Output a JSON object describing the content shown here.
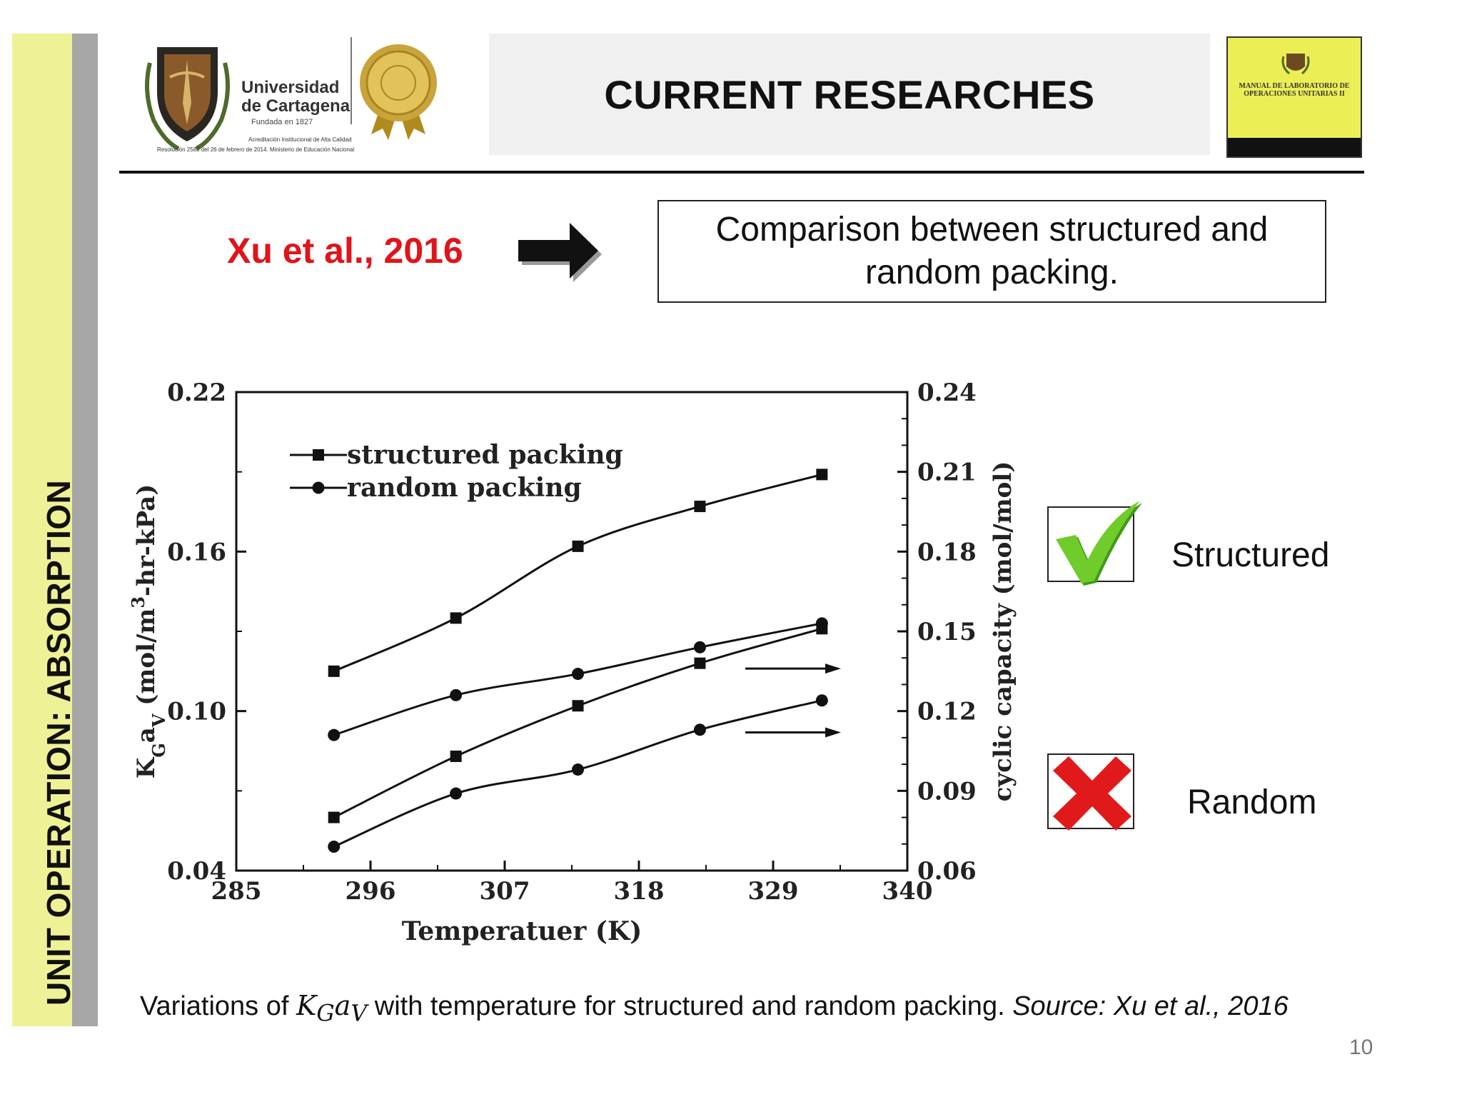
{
  "sidebar": {
    "label": "UNIT OPERATION: ABSORPTION"
  },
  "header": {
    "title": "CURRENT RESEARCHES",
    "logo": {
      "name_line1": "Universidad",
      "name_line2": "de Cartagena",
      "founded": "Fundada en 1827",
      "accreditation_line1": "Acreditación Institucional de Alta Calidad",
      "accreditation_line2": "Resolución 2583 del 26 de febrero de 2014. Ministerio de Educación Nacional"
    },
    "book_title": "MANUAL DE LABORATORIO DE OPERACIONES UNITARIAS II"
  },
  "reference": {
    "citation": "Xu et al., 2016",
    "arrow_icon": "right-arrow-icon"
  },
  "comparison": {
    "line1": "Comparison between structured and",
    "line2": "random packing."
  },
  "chart_data": {
    "type": "line",
    "xlabel": "Temperatuer (K)",
    "ylabel_left": "KGaV (mol/m3-hr-kPa)",
    "ylabel_left_parts": {
      "k": "K",
      "g": "G",
      "a": "a",
      "v": "V",
      "rest": " (mol/m",
      "sup": "3",
      "tail": "-hr-kPa)"
    },
    "ylabel_right": "cyclic capacity (mol/mol)",
    "xlim": [
      285,
      340
    ],
    "ylim_left": [
      0.04,
      0.22
    ],
    "ylim_right": [
      0.06,
      0.24
    ],
    "x_ticks": [
      "285",
      "296",
      "307",
      "318",
      "329",
      "340"
    ],
    "y_left_ticks": [
      "0.04",
      "0.10",
      "0.16",
      "0.22"
    ],
    "y_right_ticks": [
      "0.06",
      "0.09",
      "0.12",
      "0.15",
      "0.18",
      "0.21",
      "0.24"
    ],
    "legend": {
      "placement": "top-left",
      "entries": [
        {
          "name": "structured packing",
          "marker": "square"
        },
        {
          "name": "random packing",
          "marker": "circle"
        }
      ]
    },
    "x": [
      293,
      303,
      313,
      323,
      333
    ],
    "series": [
      {
        "name": "structured packing",
        "axis": "left",
        "marker": "square",
        "values": [
          0.115,
          0.135,
          0.162,
          0.177,
          0.189
        ]
      },
      {
        "name": "random packing",
        "axis": "left",
        "marker": "circle",
        "values": [
          0.091,
          0.106,
          0.114,
          0.124,
          0.133
        ]
      },
      {
        "name": "structured packing",
        "axis": "right",
        "marker": "square",
        "values": [
          0.08,
          0.103,
          0.122,
          0.138,
          0.151
        ]
      },
      {
        "name": "random packing",
        "axis": "right",
        "marker": "circle",
        "values": [
          0.069,
          0.089,
          0.098,
          0.113,
          0.124
        ]
      }
    ],
    "annotations": [
      {
        "type": "arrow",
        "direction": "right",
        "points_to": "right-axis",
        "near_y_right": 0.136
      },
      {
        "type": "arrow",
        "direction": "right",
        "points_to": "right-axis",
        "near_y_right": 0.112
      }
    ],
    "grid": false
  },
  "results": {
    "structured_label": "Structured",
    "random_label": "Random",
    "check_color": "#5bbf1f",
    "cross_color": "#e01a1a"
  },
  "caption": {
    "prefix": "Variations of ",
    "math_k": "K",
    "math_g": "G",
    "math_a": "a",
    "math_v": "V",
    "middle": " with temperature for structured and random packing. ",
    "source": "Source: Xu et al., 2016"
  },
  "page_number": "10"
}
